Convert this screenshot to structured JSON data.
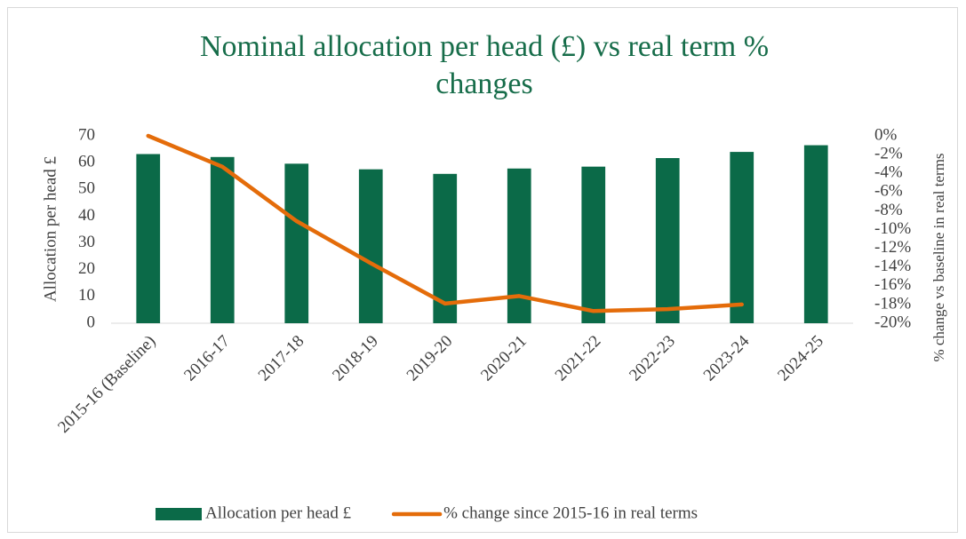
{
  "chart_data": {
    "type": "bar-line",
    "title": "Nominal allocation per head (£) vs real term % changes",
    "y_label": "Allocation per head £",
    "y2_label": "% change vs baseline in real terms",
    "categories": [
      "2015-16 (Baseline)",
      "2016-17",
      "2017-18",
      "2018-19",
      "2019-20",
      "2020-21",
      "2021-22",
      "2022-23",
      "2023-24",
      "2024-25"
    ],
    "series": [
      {
        "name": "Allocation per head £",
        "type": "bar",
        "color": "#0b6a48",
        "values": [
          63.2,
          62.1,
          59.6,
          57.5,
          55.8,
          57.8,
          58.5,
          61.7,
          64.0,
          66.5
        ]
      },
      {
        "name": "% change since 2015-16 in real terms",
        "type": "line",
        "axis": "y2",
        "color": "#e46c0a",
        "values": [
          0,
          -3.3,
          -9.1,
          -13.6,
          -17.9,
          -17.1,
          -18.7,
          -18.5,
          -18.0,
          null
        ]
      }
    ],
    "ylim": [
      0,
      70
    ],
    "yticks": [
      0,
      10,
      20,
      30,
      40,
      50,
      60,
      70
    ],
    "y2lim": [
      -20,
      0
    ],
    "y2ticks": [
      {
        "value": 0,
        "label": "0%"
      },
      {
        "value": -2,
        "label": "-2%"
      },
      {
        "value": -4,
        "label": "-4%"
      },
      {
        "value": -6,
        "label": "-6%"
      },
      {
        "value": -8,
        "label": "-8%"
      },
      {
        "value": -10,
        "label": "-10%"
      },
      {
        "value": -12,
        "label": "-12%"
      },
      {
        "value": -14,
        "label": "-14%"
      },
      {
        "value": -16,
        "label": "-16%"
      },
      {
        "value": -18,
        "label": "-18%"
      },
      {
        "value": -20,
        "label": "-20%"
      }
    ],
    "legend": "bottom"
  }
}
